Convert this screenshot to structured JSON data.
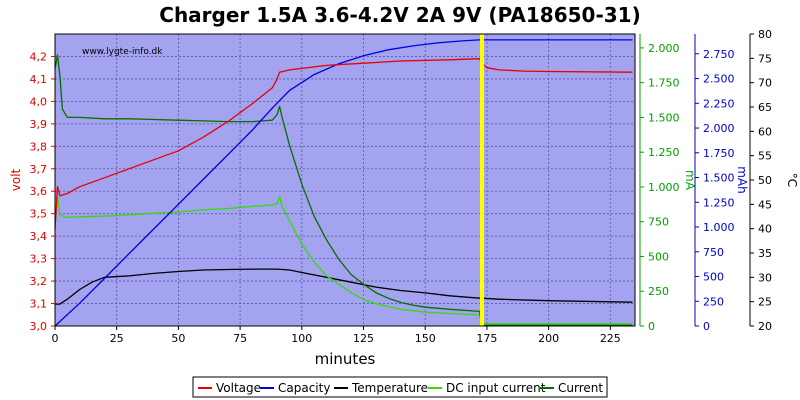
{
  "chart_data": {
    "type": "line",
    "title": "Charger 1.5A 3.6-4.2V 2A 9V (PA18650-31)",
    "watermark": "www.lygte-info.dk",
    "xlabel": "minutes",
    "xlim": [
      0,
      235
    ],
    "x_ticks": [
      "0",
      "25",
      "50",
      "75",
      "100",
      "125",
      "150",
      "175",
      "200",
      "225"
    ],
    "x_tick_values": [
      0,
      25,
      50,
      75,
      100,
      125,
      150,
      175,
      200,
      225
    ],
    "background_color": "#a3a3f0",
    "grid": true,
    "legend_position": "bottom",
    "marker": {
      "x": 173,
      "color": "#ffff00"
    },
    "axes": {
      "volt": {
        "label": "volt",
        "color": "#e00000",
        "side": "left",
        "range": [
          3.0,
          4.3
        ],
        "ticks": [
          "3,0",
          "3,1",
          "3,2",
          "3,3",
          "3,4",
          "3,5",
          "3,6",
          "3,7",
          "3,8",
          "3,9",
          "4,0",
          "4,1",
          "4,2"
        ],
        "tick_values": [
          3.0,
          3.1,
          3.2,
          3.3,
          3.4,
          3.5,
          3.6,
          3.7,
          3.8,
          3.9,
          4.0,
          4.1,
          4.2
        ]
      },
      "mA": {
        "label": "mA",
        "color": "#00a000",
        "side": "right",
        "range": [
          0,
          2100
        ],
        "ticks": [
          "0",
          "250",
          "500",
          "750",
          "1.000",
          "1.250",
          "1.500",
          "1.750",
          "2.000"
        ],
        "tick_values": [
          0,
          250,
          500,
          750,
          1000,
          1250,
          1500,
          1750,
          2000
        ]
      },
      "mAh": {
        "label": "mAh",
        "color": "#0000cc",
        "side": "right",
        "range": [
          0,
          2950
        ],
        "ticks": [
          "0",
          "250",
          "500",
          "750",
          "1.000",
          "1.250",
          "1.500",
          "1.750",
          "2.000",
          "2.250",
          "2.500",
          "2.750"
        ],
        "tick_values": [
          0,
          250,
          500,
          750,
          1000,
          1250,
          1500,
          1750,
          2000,
          2250,
          2500,
          2750
        ]
      },
      "temp": {
        "label": "°C",
        "color": "#000000",
        "side": "right",
        "range": [
          20,
          80
        ],
        "ticks": [
          "20",
          "25",
          "30",
          "35",
          "40",
          "45",
          "50",
          "55",
          "60",
          "65",
          "70",
          "75",
          "80"
        ],
        "tick_values": [
          20,
          25,
          30,
          35,
          40,
          45,
          50,
          55,
          60,
          65,
          70,
          75,
          80
        ]
      }
    },
    "series": [
      {
        "name": "Voltage",
        "axis": "volt",
        "color": "#e60000",
        "points": [
          [
            0,
            3.43
          ],
          [
            1,
            3.62
          ],
          [
            2,
            3.58
          ],
          [
            5,
            3.59
          ],
          [
            10,
            3.62
          ],
          [
            20,
            3.66
          ],
          [
            30,
            3.7
          ],
          [
            40,
            3.74
          ],
          [
            50,
            3.78
          ],
          [
            60,
            3.84
          ],
          [
            70,
            3.91
          ],
          [
            80,
            3.99
          ],
          [
            88,
            4.06
          ],
          [
            90,
            4.1
          ],
          [
            91,
            4.13
          ],
          [
            95,
            4.14
          ],
          [
            110,
            4.16
          ],
          [
            125,
            4.17
          ],
          [
            140,
            4.18
          ],
          [
            160,
            4.185
          ],
          [
            172,
            4.19
          ],
          [
            173,
            4.17
          ],
          [
            175,
            4.15
          ],
          [
            180,
            4.14
          ],
          [
            190,
            4.135
          ],
          [
            200,
            4.133
          ],
          [
            234,
            4.13
          ]
        ]
      },
      {
        "name": "Capacity",
        "axis": "mAh",
        "color": "#0000e6",
        "points": [
          [
            0,
            0
          ],
          [
            10,
            230
          ],
          [
            20,
            480
          ],
          [
            30,
            730
          ],
          [
            40,
            980
          ],
          [
            50,
            1230
          ],
          [
            60,
            1480
          ],
          [
            70,
            1730
          ],
          [
            80,
            1980
          ],
          [
            88,
            2200
          ],
          [
            95,
            2380
          ],
          [
            105,
            2540
          ],
          [
            115,
            2650
          ],
          [
            125,
            2730
          ],
          [
            135,
            2790
          ],
          [
            145,
            2830
          ],
          [
            155,
            2860
          ],
          [
            165,
            2880
          ],
          [
            172,
            2890
          ],
          [
            234,
            2890
          ]
        ]
      },
      {
        "name": "Temperature",
        "axis": "temp",
        "color": "#000000",
        "points": [
          [
            0,
            24.5
          ],
          [
            2,
            24.5
          ],
          [
            5,
            25.5
          ],
          [
            10,
            27.5
          ],
          [
            15,
            29
          ],
          [
            20,
            30
          ],
          [
            30,
            30.3
          ],
          [
            40,
            30.8
          ],
          [
            50,
            31.2
          ],
          [
            60,
            31.5
          ],
          [
            70,
            31.6
          ],
          [
            80,
            31.7
          ],
          [
            90,
            31.7
          ],
          [
            95,
            31.5
          ],
          [
            100,
            31
          ],
          [
            110,
            30
          ],
          [
            120,
            29
          ],
          [
            130,
            28
          ],
          [
            140,
            27.3
          ],
          [
            150,
            26.8
          ],
          [
            160,
            26.2
          ],
          [
            170,
            25.8
          ],
          [
            180,
            25.5
          ],
          [
            200,
            25.2
          ],
          [
            234,
            24.9
          ]
        ]
      },
      {
        "name": "DC input current",
        "axis": "mA",
        "color": "#33dd00",
        "points": [
          [
            0,
            900
          ],
          [
            1,
            930
          ],
          [
            2,
            800
          ],
          [
            5,
            780
          ],
          [
            10,
            785
          ],
          [
            20,
            790
          ],
          [
            30,
            800
          ],
          [
            40,
            810
          ],
          [
            50,
            820
          ],
          [
            60,
            835
          ],
          [
            70,
            845
          ],
          [
            80,
            860
          ],
          [
            88,
            870
          ],
          [
            90,
            880
          ],
          [
            91,
            930
          ],
          [
            92,
            860
          ],
          [
            95,
            760
          ],
          [
            100,
            590
          ],
          [
            105,
            460
          ],
          [
            110,
            360
          ],
          [
            120,
            240
          ],
          [
            125,
            190
          ],
          [
            130,
            160
          ],
          [
            135,
            140
          ],
          [
            140,
            120
          ],
          [
            145,
            110
          ],
          [
            150,
            100
          ],
          [
            160,
            90
          ],
          [
            172,
            80
          ],
          [
            173,
            15
          ],
          [
            234,
            15
          ]
        ]
      },
      {
        "name": "Current",
        "axis": "mA",
        "color": "#007000",
        "points": [
          [
            0,
            1850
          ],
          [
            1,
            1950
          ],
          [
            2,
            1800
          ],
          [
            3,
            1560
          ],
          [
            5,
            1500
          ],
          [
            10,
            1500
          ],
          [
            20,
            1490
          ],
          [
            30,
            1490
          ],
          [
            40,
            1485
          ],
          [
            50,
            1480
          ],
          [
            60,
            1475
          ],
          [
            70,
            1470
          ],
          [
            80,
            1470
          ],
          [
            88,
            1480
          ],
          [
            90,
            1520
          ],
          [
            91,
            1580
          ],
          [
            92,
            1500
          ],
          [
            95,
            1300
          ],
          [
            100,
            1020
          ],
          [
            105,
            790
          ],
          [
            110,
            620
          ],
          [
            115,
            480
          ],
          [
            120,
            370
          ],
          [
            125,
            300
          ],
          [
            130,
            240
          ],
          [
            135,
            200
          ],
          [
            140,
            170
          ],
          [
            145,
            150
          ],
          [
            150,
            135
          ],
          [
            160,
            120
          ],
          [
            172,
            105
          ],
          [
            173,
            5
          ],
          [
            234,
            5
          ]
        ]
      }
    ]
  }
}
